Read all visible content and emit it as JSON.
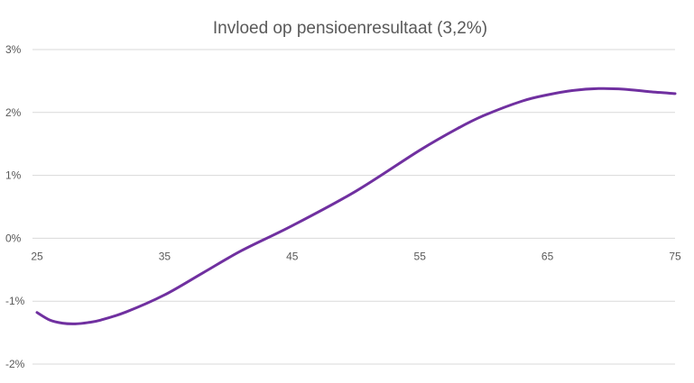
{
  "chart_data": {
    "type": "line",
    "title": "Invloed op pensioenresultaat (3,2%)",
    "xlabel": "",
    "ylabel": "",
    "x_tick_labels": [
      "25",
      "35",
      "45",
      "55",
      "65",
      "75"
    ],
    "y_tick_labels": [
      "3%",
      "2%",
      "1%",
      "0%",
      "-1%",
      "-2%"
    ],
    "xlim": [
      25,
      75
    ],
    "ylim": [
      -2,
      3
    ],
    "grid": true,
    "legend": "none",
    "line_color": "#7030a0",
    "series": [
      {
        "x": [
          25,
          26,
          27,
          28,
          29,
          30,
          32,
          35,
          38,
          41,
          45,
          50,
          55,
          58,
          60,
          63,
          65,
          67,
          69,
          71,
          73,
          75
        ],
        "values": [
          -1.18,
          -1.3,
          -1.35,
          -1.36,
          -1.34,
          -1.3,
          -1.17,
          -0.9,
          -0.55,
          -0.2,
          0.2,
          0.75,
          1.4,
          1.75,
          1.95,
          2.18,
          2.28,
          2.35,
          2.38,
          2.37,
          2.33,
          2.3
        ]
      }
    ]
  }
}
